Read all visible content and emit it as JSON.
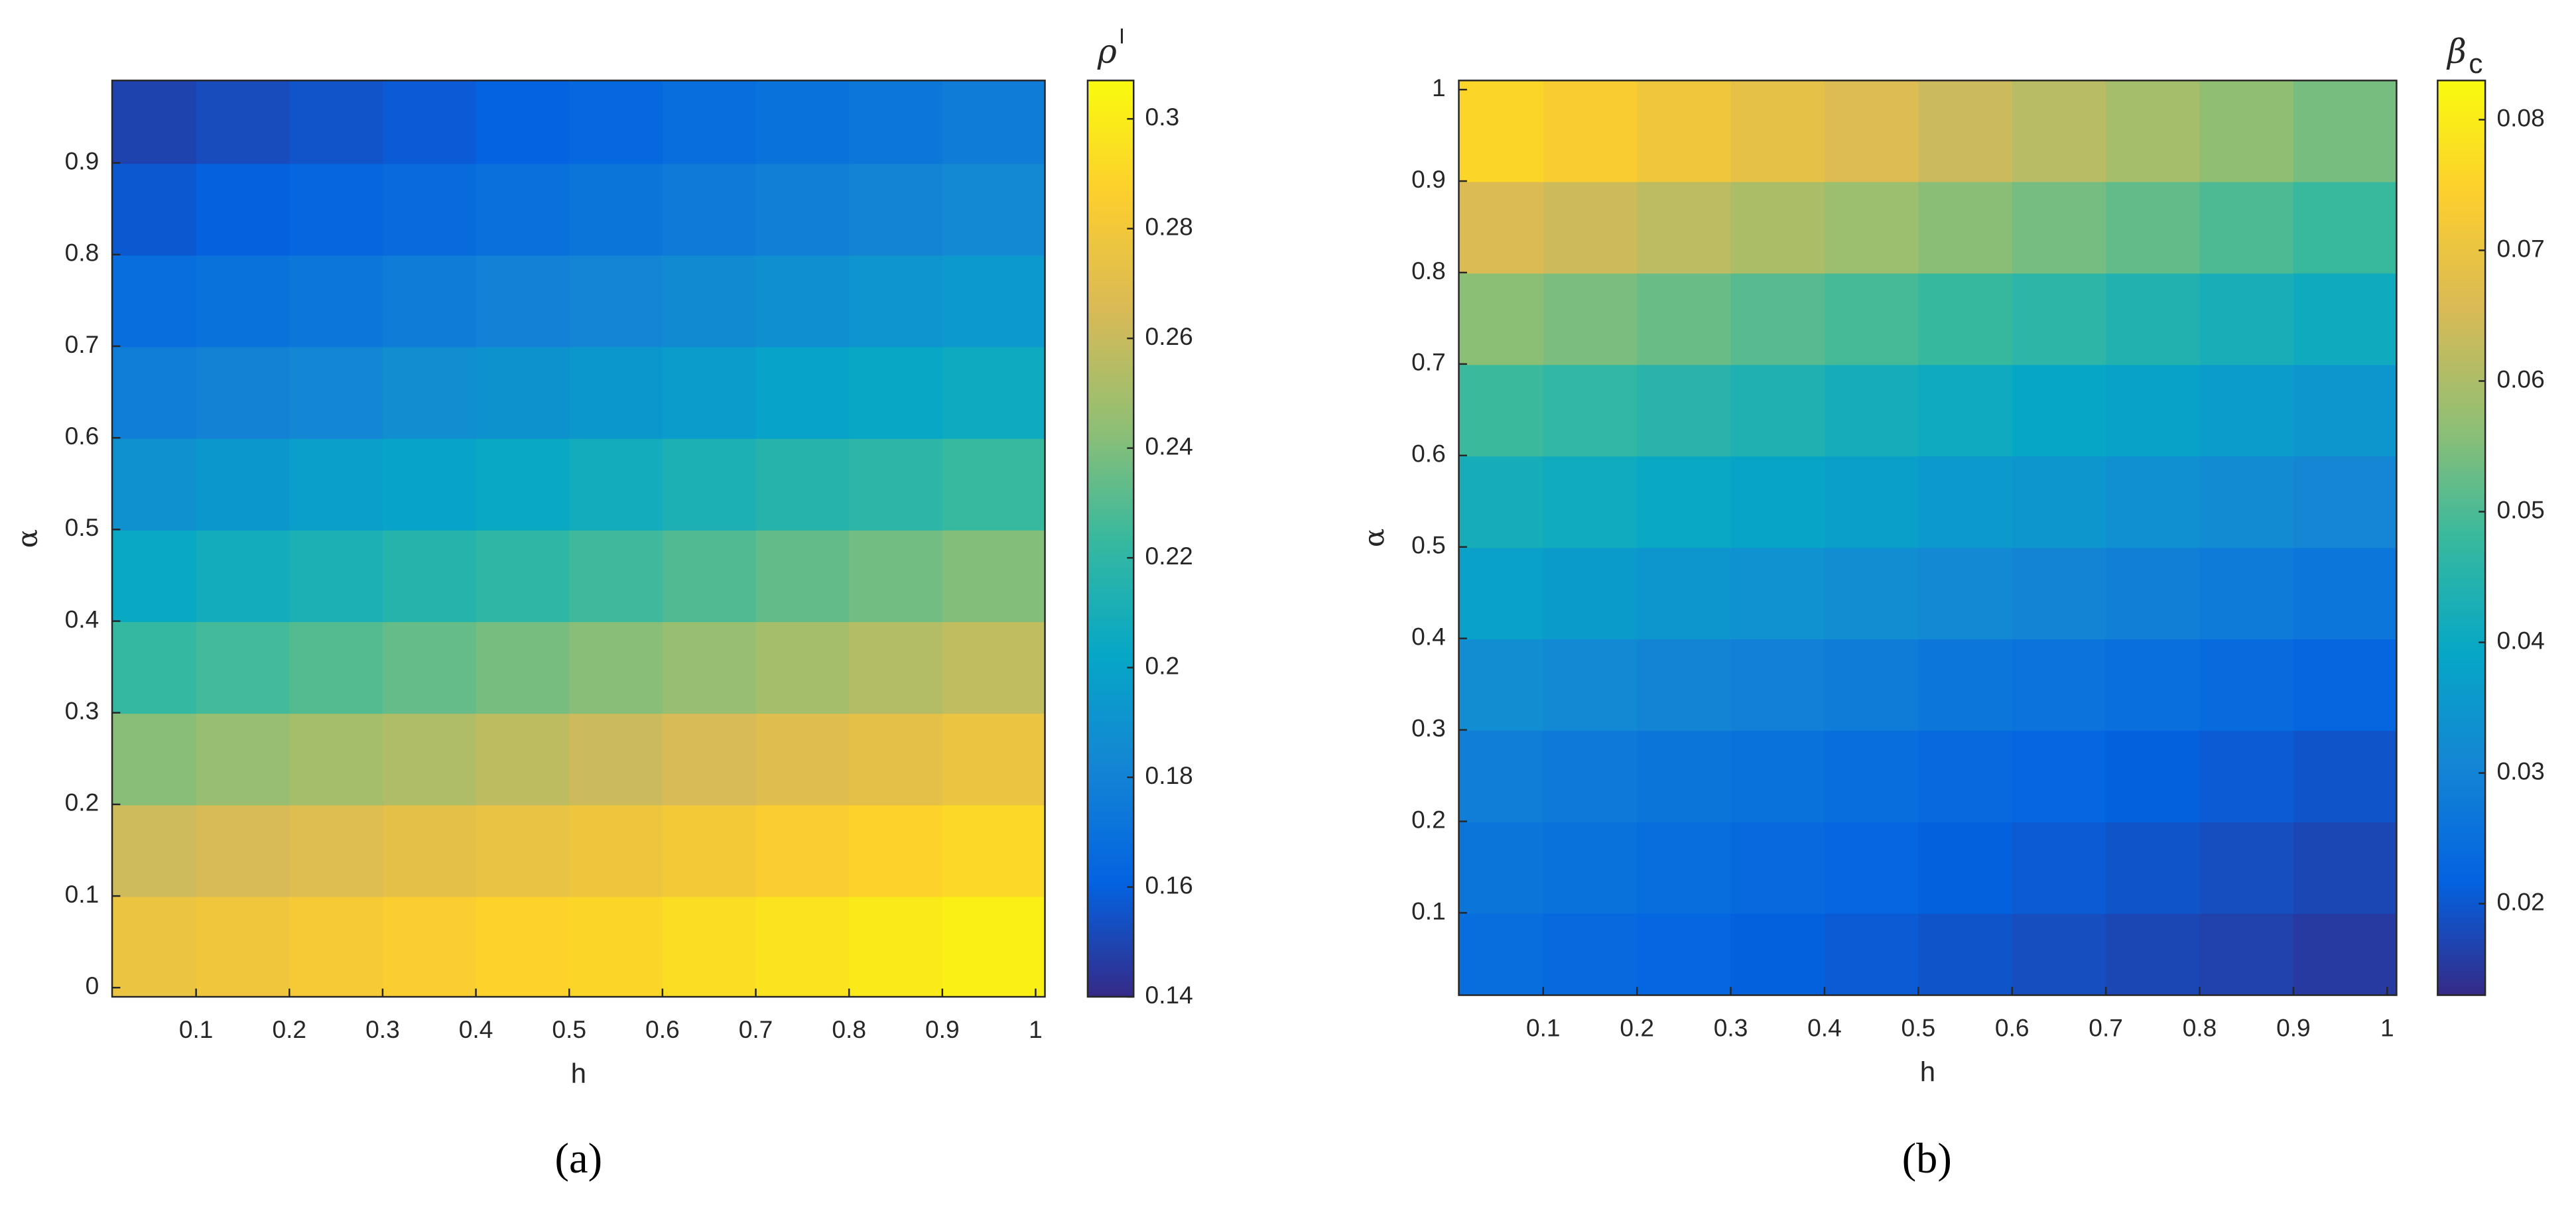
{
  "chart_data": [
    {
      "type": "heatmap",
      "panel_label": "(a)",
      "xlabel": "h",
      "ylabel": "α",
      "colorbar_label": "ρ",
      "colorbar_label_sup": "I",
      "colormap": "parula",
      "x": [
        0.05,
        0.15,
        0.25,
        0.35,
        0.45,
        0.55,
        0.65,
        0.75,
        0.85,
        0.95
      ],
      "y": [
        0.05,
        0.15,
        0.25,
        0.35,
        0.45,
        0.55,
        0.65,
        0.75,
        0.85,
        0.95
      ],
      "z": [
        [
          0.276,
          0.279,
          0.282,
          0.285,
          0.288,
          0.29,
          0.293,
          0.296,
          0.299,
          0.302
        ],
        [
          0.262,
          0.265,
          0.268,
          0.272,
          0.275,
          0.278,
          0.281,
          0.285,
          0.288,
          0.291
        ],
        [
          0.242,
          0.246,
          0.25,
          0.253,
          0.257,
          0.261,
          0.265,
          0.269,
          0.272,
          0.276
        ],
        [
          0.222,
          0.226,
          0.23,
          0.234,
          0.238,
          0.242,
          0.246,
          0.25,
          0.254,
          0.258
        ],
        [
          0.204,
          0.208,
          0.212,
          0.216,
          0.22,
          0.225,
          0.229,
          0.233,
          0.237,
          0.241
        ],
        [
          0.189,
          0.193,
          0.197,
          0.2,
          0.204,
          0.208,
          0.212,
          0.216,
          0.219,
          0.223
        ],
        [
          0.177,
          0.18,
          0.183,
          0.187,
          0.19,
          0.193,
          0.196,
          0.2,
          0.203,
          0.206
        ],
        [
          0.167,
          0.17,
          0.173,
          0.176,
          0.179,
          0.182,
          0.185,
          0.188,
          0.191,
          0.194
        ],
        [
          0.157,
          0.16,
          0.163,
          0.166,
          0.169,
          0.172,
          0.175,
          0.178,
          0.181,
          0.184
        ],
        [
          0.149,
          0.152,
          0.155,
          0.158,
          0.161,
          0.164,
          0.167,
          0.17,
          0.173,
          0.176
        ]
      ],
      "xlim": [
        0.01,
        1.01
      ],
      "ylim": [
        -0.01,
        0.99
      ],
      "xticks": [
        0.1,
        0.2,
        0.3,
        0.4,
        0.5,
        0.6,
        0.7,
        0.8,
        0.9,
        1
      ],
      "yticks": [
        0,
        0.1,
        0.2,
        0.3,
        0.4,
        0.5,
        0.6,
        0.7,
        0.8,
        0.9
      ],
      "clim": [
        0.14,
        0.307
      ],
      "colorbar_ticks": [
        0.14,
        0.16,
        0.18,
        0.2,
        0.22,
        0.24,
        0.26,
        0.28,
        0.3
      ]
    },
    {
      "type": "heatmap",
      "panel_label": "(b)",
      "xlabel": "h",
      "ylabel": "α",
      "colorbar_label": "β",
      "colorbar_label_sub": "c",
      "colormap": "parula",
      "x": [
        0.05,
        0.15,
        0.25,
        0.35,
        0.45,
        0.55,
        0.65,
        0.75,
        0.85,
        0.95
      ],
      "y": [
        0.05,
        0.15,
        0.25,
        0.35,
        0.45,
        0.55,
        0.65,
        0.75,
        0.85,
        0.95
      ],
      "z": [
        [
          0.0245,
          0.0235,
          0.0225,
          0.0215,
          0.0205,
          0.0195,
          0.0185,
          0.0175,
          0.0165,
          0.0155
        ],
        [
          0.0265,
          0.0255,
          0.0245,
          0.0235,
          0.0225,
          0.0215,
          0.0205,
          0.0195,
          0.0185,
          0.0175
        ],
        [
          0.0285,
          0.0275,
          0.0265,
          0.0255,
          0.0245,
          0.0235,
          0.0225,
          0.0215,
          0.0205,
          0.0195
        ],
        [
          0.0325,
          0.0313,
          0.0302,
          0.0292,
          0.0281,
          0.027,
          0.0259,
          0.0248,
          0.0237,
          0.0226
        ],
        [
          0.0374,
          0.0362,
          0.035,
          0.0338,
          0.0326,
          0.0314,
          0.0302,
          0.029,
          0.0278,
          0.0266
        ],
        [
          0.0423,
          0.041,
          0.0398,
          0.0385,
          0.0372,
          0.0359,
          0.0346,
          0.0333,
          0.032,
          0.0307
        ],
        [
          0.0483,
          0.0468,
          0.0453,
          0.0438,
          0.0423,
          0.0408,
          0.0393,
          0.0378,
          0.0363,
          0.0348
        ],
        [
          0.0562,
          0.0545,
          0.0528,
          0.0511,
          0.0494,
          0.0477,
          0.046,
          0.0443,
          0.0426,
          0.0409
        ],
        [
          0.066,
          0.064,
          0.062,
          0.06,
          0.058,
          0.056,
          0.054,
          0.052,
          0.05,
          0.048
        ],
        [
          0.0758,
          0.0734,
          0.071,
          0.0686,
          0.0662,
          0.0638,
          0.0614,
          0.059,
          0.0566,
          0.0542
        ]
      ],
      "xlim": [
        0.01,
        1.01
      ],
      "ylim": [
        0.01,
        1.01
      ],
      "xticks": [
        0.1,
        0.2,
        0.3,
        0.4,
        0.5,
        0.6,
        0.7,
        0.8,
        0.9,
        1
      ],
      "yticks": [
        0.1,
        0.2,
        0.3,
        0.4,
        0.5,
        0.6,
        0.7,
        0.8,
        0.9,
        1
      ],
      "clim": [
        0.013,
        0.083
      ],
      "colorbar_ticks": [
        0.02,
        0.03,
        0.04,
        0.05,
        0.06,
        0.07,
        0.08
      ]
    }
  ]
}
